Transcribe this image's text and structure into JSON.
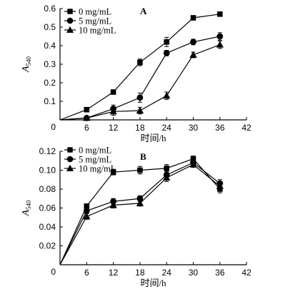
{
  "chart_data": [
    {
      "type": "line",
      "panel_label": "A",
      "xlabel": "时间/h",
      "ylabel_main": "A",
      "ylabel_sub": "540",
      "xlim": [
        0,
        42
      ],
      "ylim": [
        0,
        0.6
      ],
      "x_ticks": [
        0,
        6,
        12,
        18,
        24,
        30,
        36,
        42
      ],
      "y_ticks": [
        0.1,
        0.2,
        0.3,
        0.4,
        0.5,
        0.6
      ],
      "y_tick_labels": [
        "0.1",
        "0.2",
        "0.3",
        "0.4",
        "0.5",
        "0.6"
      ],
      "origin_label": "0",
      "legend_position": "top-left",
      "grid": false,
      "series": [
        {
          "name": "0 mg/mL",
          "marker": "square",
          "x": [
            0,
            6,
            12,
            18,
            24,
            30,
            36
          ],
          "y": [
            0.0,
            0.055,
            0.15,
            0.31,
            0.42,
            0.55,
            0.57
          ],
          "err": [
            0,
            0.01,
            0.01,
            0.018,
            0.025,
            0.012,
            0.012
          ]
        },
        {
          "name": "5 mg/mL",
          "marker": "circle",
          "x": [
            0,
            6,
            12,
            18,
            24,
            30,
            36
          ],
          "y": [
            0.0,
            0.01,
            0.06,
            0.12,
            0.36,
            0.42,
            0.45
          ],
          "err": [
            0,
            0.005,
            0.02,
            0.025,
            0.015,
            0.015,
            0.02
          ]
        },
        {
          "name": "10 mg/mL",
          "marker": "triangle",
          "x": [
            0,
            6,
            12,
            18,
            24,
            30,
            36
          ],
          "y": [
            0.0,
            0.01,
            0.045,
            0.05,
            0.13,
            0.35,
            0.405
          ],
          "err": [
            0,
            0.005,
            0.02,
            0.018,
            0.02,
            0.015,
            0.02
          ]
        }
      ]
    },
    {
      "type": "line",
      "panel_label": "B",
      "xlabel": "时间/h",
      "ylabel_main": "A",
      "ylabel_sub": "540",
      "xlim": [
        0,
        42
      ],
      "ylim": [
        0,
        0.12
      ],
      "x_ticks": [
        0,
        6,
        12,
        18,
        24,
        30,
        36,
        42
      ],
      "y_ticks": [
        0.02,
        0.04,
        0.06,
        0.08,
        0.1,
        0.12
      ],
      "y_tick_labels": [
        "0.02",
        "0.04",
        "0.06",
        "0.08",
        "0.10",
        "0.12"
      ],
      "origin_label": "0",
      "legend_position": "top-left",
      "grid": false,
      "series": [
        {
          "name": "0 mg/mL",
          "marker": "square",
          "x": [
            0,
            6,
            12,
            18,
            24,
            30,
            36
          ],
          "y": [
            0.0,
            0.062,
            0.098,
            0.1,
            0.102,
            0.112,
            0.08
          ],
          "err": [
            0,
            0.002,
            0.003,
            0.004,
            0.004,
            0.003,
            0.004
          ]
        },
        {
          "name": "5 mg/mL",
          "marker": "circle",
          "x": [
            0,
            6,
            12,
            18,
            24,
            30,
            36
          ],
          "y": [
            0.0,
            0.057,
            0.067,
            0.07,
            0.095,
            0.108,
            0.086
          ],
          "err": [
            0,
            0.003,
            0.003,
            0.003,
            0.004,
            0.003,
            0.004
          ]
        },
        {
          "name": "10 mg/mL",
          "marker": "triangle",
          "x": [
            0,
            6,
            12,
            18,
            24,
            30,
            36
          ],
          "y": [
            0.0,
            0.051,
            0.063,
            0.065,
            0.092,
            0.106,
            0.083
          ],
          "err": [
            0,
            0.003,
            0.003,
            0.003,
            0.004,
            0.003,
            0.004
          ]
        }
      ]
    }
  ]
}
